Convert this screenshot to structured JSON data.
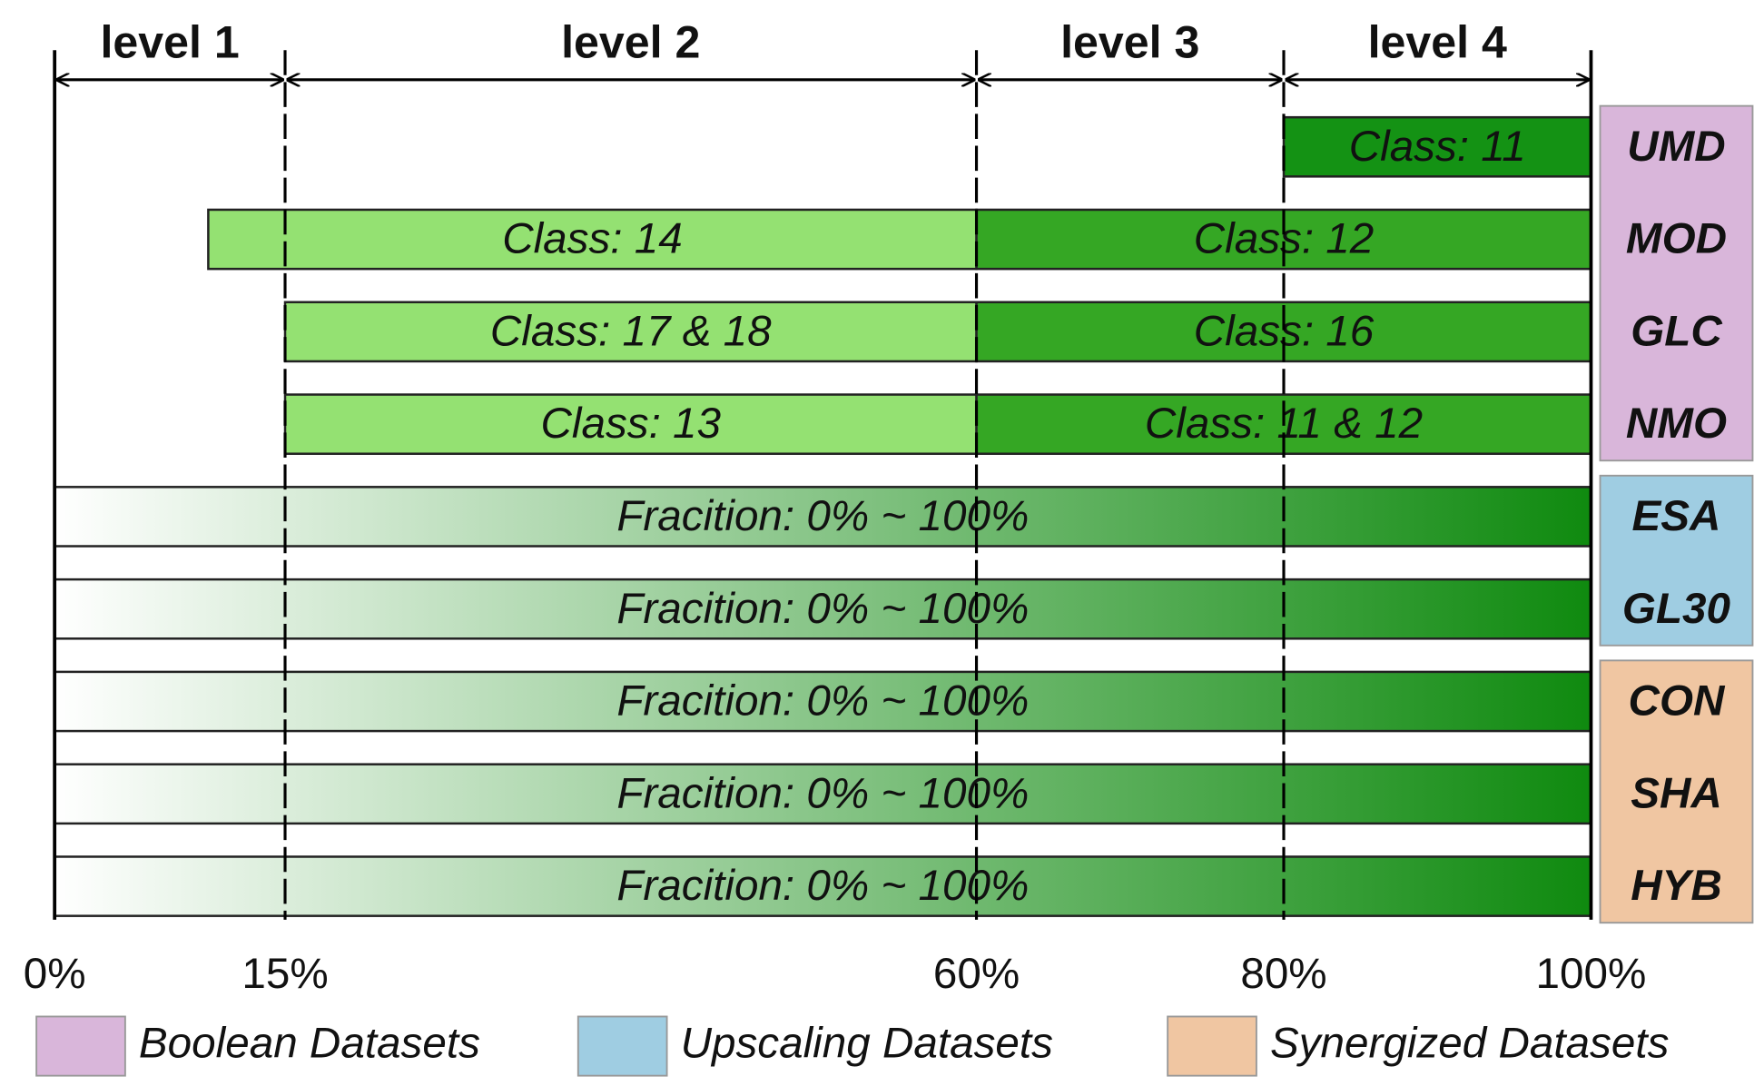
{
  "scale": {
    "xlim": [
      0,
      100
    ],
    "ticks": [
      {
        "value": 0,
        "label": "0%"
      },
      {
        "value": 15,
        "label": "15%"
      },
      {
        "value": 60,
        "label": "60%"
      },
      {
        "value": 80,
        "label": "80%"
      },
      {
        "value": 100,
        "label": "100%"
      }
    ]
  },
  "levels": [
    {
      "label": "level 1",
      "from": 0,
      "to": 15
    },
    {
      "label": "level 2",
      "from": 15,
      "to": 60
    },
    {
      "label": "level 3",
      "from": 60,
      "to": 80
    },
    {
      "label": "level 4",
      "from": 80,
      "to": 100
    }
  ],
  "legend": [
    {
      "label": "Boolean Datasets",
      "color": "#d9b6da"
    },
    {
      "label": "Upscaling Datasets",
      "color": "#9fcde2"
    },
    {
      "label": "Synergized Datasets",
      "color": "#f0c6a2"
    }
  ],
  "rows": [
    {
      "name": "UMD",
      "group": 0,
      "segments": [
        {
          "label": "Class: 11",
          "from": 80,
          "to": 100,
          "color": "#149214"
        }
      ]
    },
    {
      "name": "MOD",
      "group": 0,
      "segments": [
        {
          "label": "Class: 14",
          "from": 10,
          "to": 60,
          "color": "#94e172"
        },
        {
          "label": "Class: 12",
          "from": 60,
          "to": 100,
          "color": "#35a724"
        }
      ]
    },
    {
      "name": "GLC",
      "group": 0,
      "segments": [
        {
          "label": "Class: 17 & 18",
          "from": 15,
          "to": 60,
          "color": "#94e172"
        },
        {
          "label": "Class: 16",
          "from": 60,
          "to": 100,
          "color": "#35a724"
        }
      ]
    },
    {
      "name": "NMO",
      "group": 0,
      "segments": [
        {
          "label": "Class: 13",
          "from": 15,
          "to": 60,
          "color": "#94e172"
        },
        {
          "label": "Class: 11 & 12",
          "from": 60,
          "to": 100,
          "color": "#35a724"
        }
      ]
    },
    {
      "name": "ESA",
      "group": 1,
      "segments": [
        {
          "label": "Fracition: 0% ~ 100%",
          "from": 0,
          "to": 100,
          "gradient": [
            "#ffffff",
            "#0f8a0f"
          ]
        }
      ]
    },
    {
      "name": "GL30",
      "group": 1,
      "segments": [
        {
          "label": "Fracition: 0% ~ 100%",
          "from": 0,
          "to": 100,
          "gradient": [
            "#ffffff",
            "#0f8a0f"
          ]
        }
      ]
    },
    {
      "name": "CON",
      "group": 2,
      "segments": [
        {
          "label": "Fracition: 0% ~ 100%",
          "from": 0,
          "to": 100,
          "gradient": [
            "#ffffff",
            "#0f8a0f"
          ]
        }
      ]
    },
    {
      "name": "SHA",
      "group": 2,
      "segments": [
        {
          "label": "Fracition: 0% ~ 100%",
          "from": 0,
          "to": 100,
          "gradient": [
            "#ffffff",
            "#0f8a0f"
          ]
        }
      ]
    },
    {
      "name": "HYB",
      "group": 2,
      "segments": [
        {
          "label": "Fracition: 0% ~ 100%",
          "from": 0,
          "to": 100,
          "gradient": [
            "#ffffff",
            "#0f8a0f"
          ]
        }
      ]
    }
  ]
}
